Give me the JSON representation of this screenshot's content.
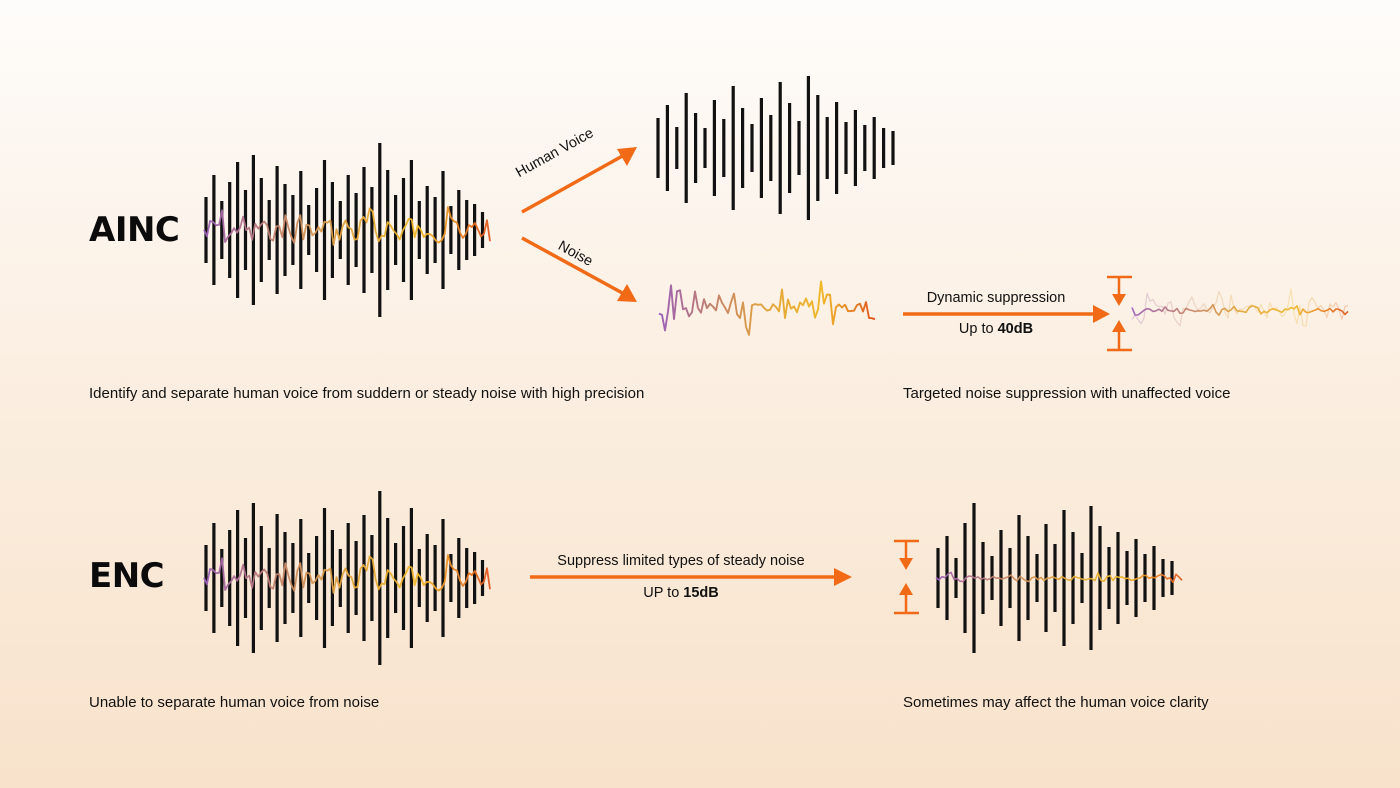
{
  "colors": {
    "accent": "#f26a16",
    "bars": "#111111",
    "noise_gradient": [
      "#9b5fb8",
      "#c4826a",
      "#e3a53a",
      "#f0b82a",
      "#e2571f"
    ]
  },
  "ainc": {
    "heading": "AINC",
    "branch_voice_label": "Human Voice",
    "branch_noise_label": "Noise",
    "suppression_label": "Dynamic suppression",
    "suppression_amount_prefix": "Up to ",
    "suppression_amount_value": "40dB",
    "caption_left": "Identify and separate human voice from suddern or steady noise with high precision",
    "caption_right": "Targeted noise suppression with unaffected voice"
  },
  "enc": {
    "heading": "ENC",
    "suppression_label": "Suppress limited types of steady noise",
    "suppression_amount_prefix": "UP to ",
    "suppression_amount_value": "15dB",
    "caption_left": "Unable to separate human voice from noise",
    "caption_right": "Sometimes may affect the human voice clarity"
  }
}
